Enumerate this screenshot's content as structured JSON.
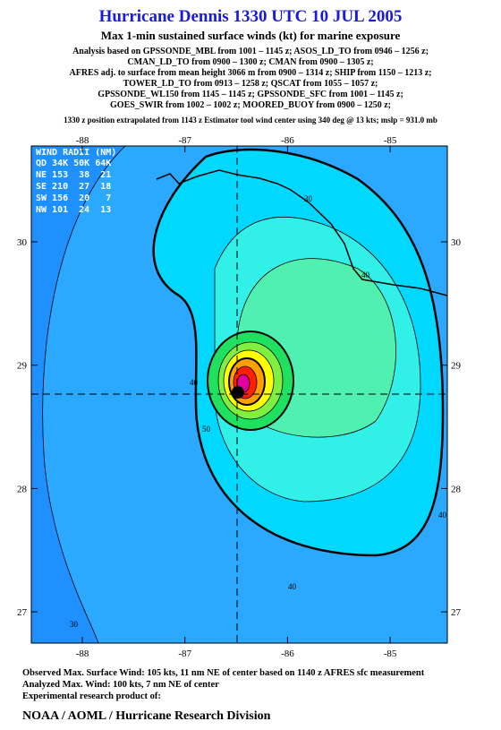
{
  "header": {
    "title": "Hurricane Dennis 1330 UTC 10 JUL 2005",
    "subtitle": "Max 1-min sustained surface winds (kt) for marine exposure",
    "analysis": [
      "Analysis based on  GPSSONDE_MBL from 1001 – 1145 z;  ASOS_LD_TO from 0946 – 1256 z;",
      "CMAN_LD_TO from 0900 – 1300 z;  CMAN from 0900 – 1305 z;",
      "AFRES adj. to surface from mean height 3066 m from 0900 – 1314 z;  SHIP from 1150 – 1213 z;",
      "TOWER_LD_TO from 0913 – 1258 z;  QSCAT from 1055 – 1057 z;",
      "GPSSONDE_WL150 from 1145 – 1145 z;  GPSSONDE_SFC from 1001 – 1145 z;",
      "GOES_SWIR from 1002 – 1002 z;  MOORED_BUOY from 0900 – 1250 z;"
    ],
    "position_note": "1330 z position extrapolated from 1143 z Estimator tool wind center using 340 deg @ 13 kts; mslp = 931.0 mb"
  },
  "map": {
    "lon_ticks": [
      -88,
      -87,
      -86,
      -85
    ],
    "lat_ticks": [
      30,
      29,
      28,
      27
    ],
    "wind_radii": {
      "title": "WIND RADII (NM)",
      "rows": [
        "QD 34K 50K 64K",
        "NE 153  38  21",
        "SE 210  27  18",
        "SW 156  20   7",
        "NW 101  24  13"
      ]
    },
    "contour_labels": [
      "40",
      "30",
      "40",
      "40",
      "40",
      "30",
      "50"
    ]
  },
  "footer": {
    "lines": [
      "Observed Max. Surface Wind: 105 kts, 11 nm NE of center based on 1140 z AFRES sfc measurement",
      "Analyzed Max. Wind: 100 kts, 7 nm NE of center",
      "Experimental research product of:"
    ],
    "org": "NOAA / AOML / Hurricane Research Division"
  }
}
